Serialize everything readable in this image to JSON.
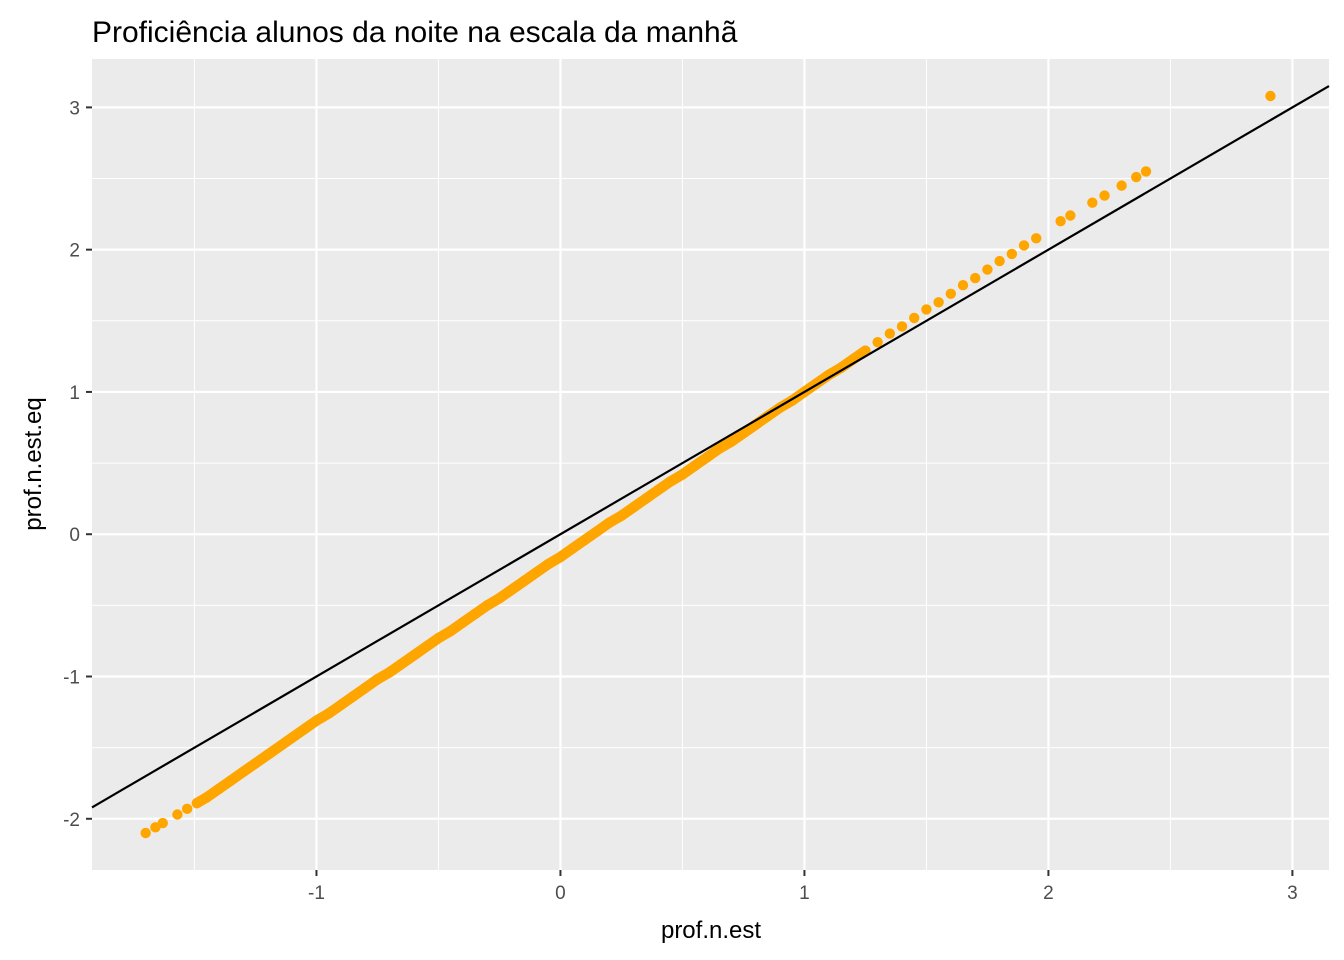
{
  "chart_data": {
    "type": "scatter",
    "title": "Proficiência alunos da noite na escala da manhã",
    "xlabel": "prof.n.est",
    "ylabel": "prof.n.est.eq",
    "xlim": [
      -1.92,
      3.15
    ],
    "ylim": [
      -2.36,
      3.34
    ],
    "x_ticks": [
      -1,
      0,
      1,
      2,
      3
    ],
    "y_ticks": [
      -2,
      -1,
      0,
      1,
      2,
      3
    ],
    "x_tick_labels": [
      "-1",
      "0",
      "1",
      "2",
      "3"
    ],
    "y_tick_labels": [
      "-2",
      "-1",
      "0",
      "1",
      "2",
      "3"
    ],
    "grid": true,
    "legend": "none",
    "point_color": "#FFA500",
    "panel_background": "#EBEBEB",
    "grid_color": "#FFFFFF",
    "reference_line": {
      "slope": 1,
      "intercept": 0,
      "color": "#000000"
    },
    "series": [
      {
        "points": [
          [
            -1.7,
            -2.1
          ],
          [
            -1.66,
            -2.06
          ],
          [
            -1.63,
            -2.03
          ],
          [
            -1.57,
            -1.97
          ],
          [
            -1.53,
            -1.93
          ],
          [
            -1.49,
            -1.89
          ],
          [
            -1.45,
            -1.85
          ],
          [
            -1.4,
            -1.79
          ],
          [
            -1.35,
            -1.73
          ],
          [
            -1.3,
            -1.67
          ],
          [
            -1.25,
            -1.61
          ],
          [
            -1.2,
            -1.55
          ],
          [
            -1.15,
            -1.49
          ],
          [
            -1.1,
            -1.43
          ],
          [
            -1.05,
            -1.37
          ],
          [
            -1.0,
            -1.31
          ],
          [
            -0.95,
            -1.26
          ],
          [
            -0.9,
            -1.2
          ],
          [
            -0.85,
            -1.14
          ],
          [
            -0.8,
            -1.08
          ],
          [
            -0.75,
            -1.02
          ],
          [
            -0.7,
            -0.97
          ],
          [
            -0.65,
            -0.91
          ],
          [
            -0.6,
            -0.85
          ],
          [
            -0.55,
            -0.79
          ],
          [
            -0.5,
            -0.73
          ],
          [
            -0.45,
            -0.68
          ],
          [
            -0.4,
            -0.62
          ],
          [
            -0.35,
            -0.56
          ],
          [
            -0.3,
            -0.5
          ],
          [
            -0.25,
            -0.45
          ],
          [
            -0.2,
            -0.39
          ],
          [
            -0.15,
            -0.33
          ],
          [
            -0.1,
            -0.27
          ],
          [
            -0.05,
            -0.21
          ],
          [
            0.0,
            -0.16
          ],
          [
            0.05,
            -0.1
          ],
          [
            0.1,
            -0.04
          ],
          [
            0.15,
            0.02
          ],
          [
            0.2,
            0.08
          ],
          [
            0.25,
            0.13
          ],
          [
            0.3,
            0.19
          ],
          [
            0.35,
            0.25
          ],
          [
            0.4,
            0.31
          ],
          [
            0.45,
            0.37
          ],
          [
            0.5,
            0.42
          ],
          [
            0.55,
            0.48
          ],
          [
            0.6,
            0.54
          ],
          [
            0.65,
            0.6
          ],
          [
            0.7,
            0.65
          ],
          [
            0.75,
            0.71
          ],
          [
            0.8,
            0.77
          ],
          [
            0.85,
            0.83
          ],
          [
            0.9,
            0.89
          ],
          [
            0.95,
            0.94
          ],
          [
            1.0,
            1.0
          ],
          [
            1.05,
            1.06
          ],
          [
            1.1,
            1.12
          ],
          [
            1.15,
            1.17
          ],
          [
            1.2,
            1.23
          ],
          [
            1.25,
            1.29
          ],
          [
            1.3,
            1.35
          ],
          [
            1.35,
            1.41
          ],
          [
            1.4,
            1.46
          ],
          [
            1.45,
            1.52
          ],
          [
            1.5,
            1.58
          ],
          [
            1.55,
            1.63
          ],
          [
            1.6,
            1.69
          ],
          [
            1.65,
            1.75
          ],
          [
            1.7,
            1.8
          ],
          [
            1.75,
            1.86
          ],
          [
            1.8,
            1.92
          ],
          [
            1.85,
            1.97
          ],
          [
            1.9,
            2.03
          ],
          [
            1.95,
            2.08
          ],
          [
            2.05,
            2.2
          ],
          [
            2.09,
            2.24
          ],
          [
            2.18,
            2.33
          ],
          [
            2.23,
            2.38
          ],
          [
            2.3,
            2.45
          ],
          [
            2.36,
            2.51
          ],
          [
            2.4,
            2.55
          ],
          [
            2.91,
            3.08
          ]
        ]
      }
    ]
  }
}
